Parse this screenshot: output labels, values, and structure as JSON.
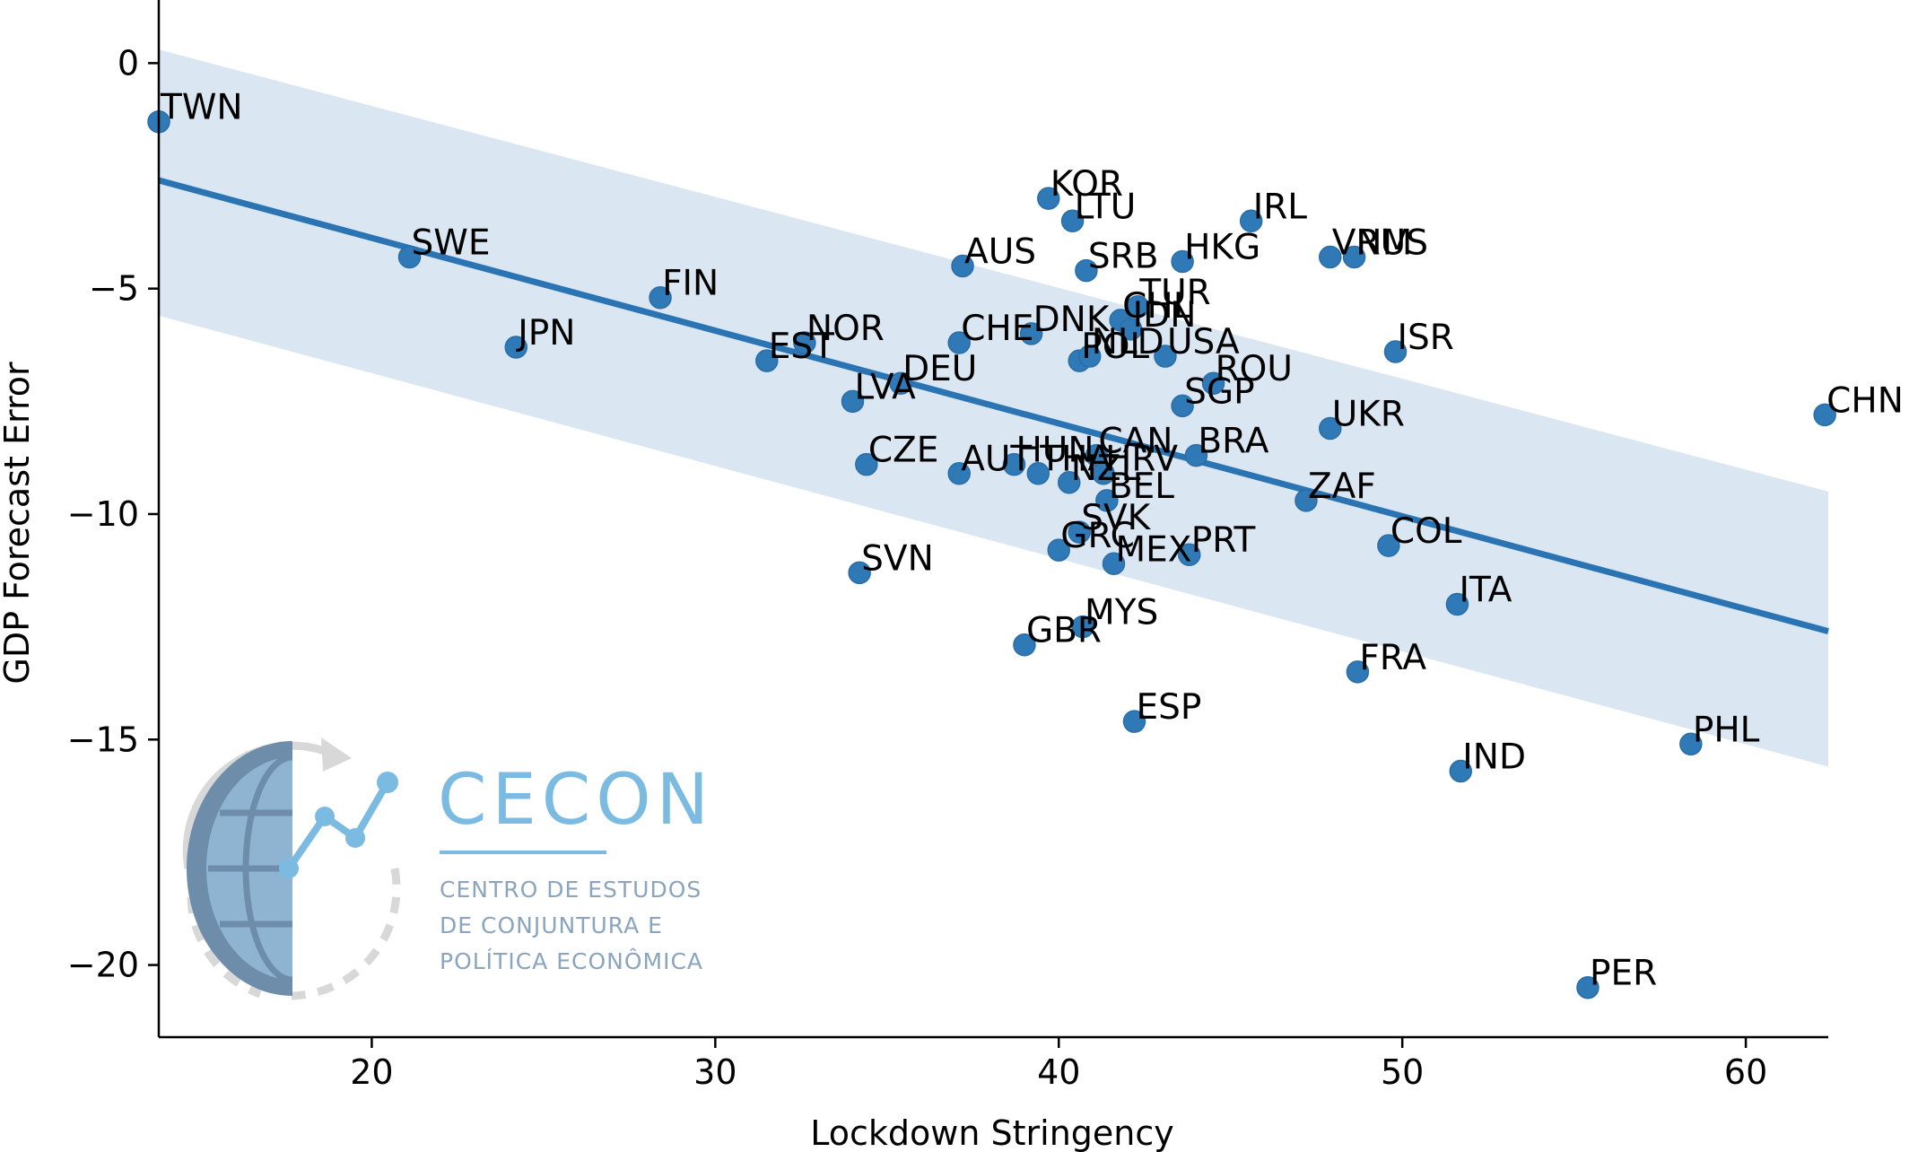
{
  "chart_data": {
    "type": "scatter",
    "title": "",
    "xlabel": "Lockdown Stringency",
    "ylabel": "GDP Forecast Error",
    "xlim": [
      13.8,
      62.4
    ],
    "ylim": [
      -21.6,
      1.4
    ],
    "xticks": [
      20,
      30,
      40,
      50,
      60
    ],
    "yticks": [
      0,
      -5,
      -10,
      -15,
      -20
    ],
    "xtick_labels": [
      "20",
      "30",
      "40",
      "50",
      "60"
    ],
    "ytick_labels": [
      "0",
      "−5",
      "−10",
      "−15",
      "−20"
    ],
    "grid": false,
    "regression": {
      "x": [
        13.8,
        62.4
      ],
      "y": [
        -2.6,
        -12.6
      ],
      "band_upper": [
        0.3,
        -9.5
      ],
      "band_lower": [
        -5.6,
        -15.6
      ]
    },
    "points": [
      {
        "label": "TWN",
        "x": 13.8,
        "y": -1.3
      },
      {
        "label": "SWE",
        "x": 21.1,
        "y": -4.3
      },
      {
        "label": "JPN",
        "x": 24.2,
        "y": -6.3
      },
      {
        "label": "FIN",
        "x": 28.4,
        "y": -5.2
      },
      {
        "label": "EST",
        "x": 31.5,
        "y": -6.6
      },
      {
        "label": "NOR",
        "x": 32.6,
        "y": -6.2
      },
      {
        "label": "LVA",
        "x": 34.0,
        "y": -7.5
      },
      {
        "label": "CZE",
        "x": 34.4,
        "y": -8.9
      },
      {
        "label": "SVN",
        "x": 34.2,
        "y": -11.3
      },
      {
        "label": "DEU",
        "x": 35.4,
        "y": -7.1
      },
      {
        "label": "AUS",
        "x": 37.2,
        "y": -4.5
      },
      {
        "label": "CHE",
        "x": 37.1,
        "y": -6.2
      },
      {
        "label": "AUT",
        "x": 37.1,
        "y": -9.1
      },
      {
        "label": "HUN",
        "x": 38.7,
        "y": -8.9
      },
      {
        "label": "GBR",
        "x": 39.0,
        "y": -12.9
      },
      {
        "label": "DNK",
        "x": 39.2,
        "y": -6.0
      },
      {
        "label": "KOR",
        "x": 39.7,
        "y": -3.0
      },
      {
        "label": "THA",
        "x": 39.4,
        "y": -9.1
      },
      {
        "label": "GRC",
        "x": 40.0,
        "y": -10.8
      },
      {
        "label": "NZL",
        "x": 40.3,
        "y": -9.3
      },
      {
        "label": "LTU",
        "x": 40.4,
        "y": -3.5
      },
      {
        "label": "SVK",
        "x": 40.6,
        "y": -10.4
      },
      {
        "label": "POL",
        "x": 40.6,
        "y": -6.6
      },
      {
        "label": "MYS",
        "x": 40.7,
        "y": -12.5
      },
      {
        "label": "SRB",
        "x": 40.8,
        "y": -4.6
      },
      {
        "label": "NLD",
        "x": 40.9,
        "y": -6.5
      },
      {
        "label": "CAN",
        "x": 41.1,
        "y": -8.7
      },
      {
        "label": "HRV",
        "x": 41.3,
        "y": -9.1
      },
      {
        "label": "BEL",
        "x": 41.4,
        "y": -9.7
      },
      {
        "label": "MEX",
        "x": 41.6,
        "y": -11.1
      },
      {
        "label": "CHL",
        "x": 41.8,
        "y": -5.7
      },
      {
        "label": "IDN",
        "x": 42.1,
        "y": -5.9
      },
      {
        "label": "ESP",
        "x": 42.2,
        "y": -14.6
      },
      {
        "label": "TUR",
        "x": 42.3,
        "y": -5.4
      },
      {
        "label": "USA",
        "x": 43.1,
        "y": -6.5
      },
      {
        "label": "SGP",
        "x": 43.6,
        "y": -7.6
      },
      {
        "label": "HKG",
        "x": 43.6,
        "y": -4.4
      },
      {
        "label": "PRT",
        "x": 43.8,
        "y": -10.9
      },
      {
        "label": "BRA",
        "x": 44.0,
        "y": -8.7
      },
      {
        "label": "ROU",
        "x": 44.5,
        "y": -7.1
      },
      {
        "label": "IRL",
        "x": 45.6,
        "y": -3.5
      },
      {
        "label": "ZAF",
        "x": 47.2,
        "y": -9.7
      },
      {
        "label": "UKR",
        "x": 47.9,
        "y": -8.1
      },
      {
        "label": "VNM",
        "x": 47.9,
        "y": -4.3
      },
      {
        "label": "RUS",
        "x": 48.6,
        "y": -4.3
      },
      {
        "label": "FRA",
        "x": 48.7,
        "y": -13.5
      },
      {
        "label": "COL",
        "x": 49.6,
        "y": -10.7
      },
      {
        "label": "ISR",
        "x": 49.8,
        "y": -6.4
      },
      {
        "label": "ITA",
        "x": 51.6,
        "y": -12.0
      },
      {
        "label": "IND",
        "x": 51.7,
        "y": -15.7
      },
      {
        "label": "PER",
        "x": 55.4,
        "y": -20.5
      },
      {
        "label": "PHL",
        "x": 58.4,
        "y": -15.1
      },
      {
        "label": "CHN",
        "x": 62.3,
        "y": -7.8
      }
    ],
    "colors": {
      "point": "#2f79b7",
      "line": "#2a74b3",
      "band": "#dae6f1"
    }
  },
  "logo": {
    "title": "CECON",
    "lines": [
      "CENTRO DE ESTUDOS",
      "DE CONJUNTURA E",
      "POLÍTICA ECONÔMICA"
    ],
    "colors": {
      "light": "#7cbbe1",
      "dark": "#6e8dab",
      "gray": "#d8d8d8",
      "text": "#8aa5bf"
    }
  }
}
